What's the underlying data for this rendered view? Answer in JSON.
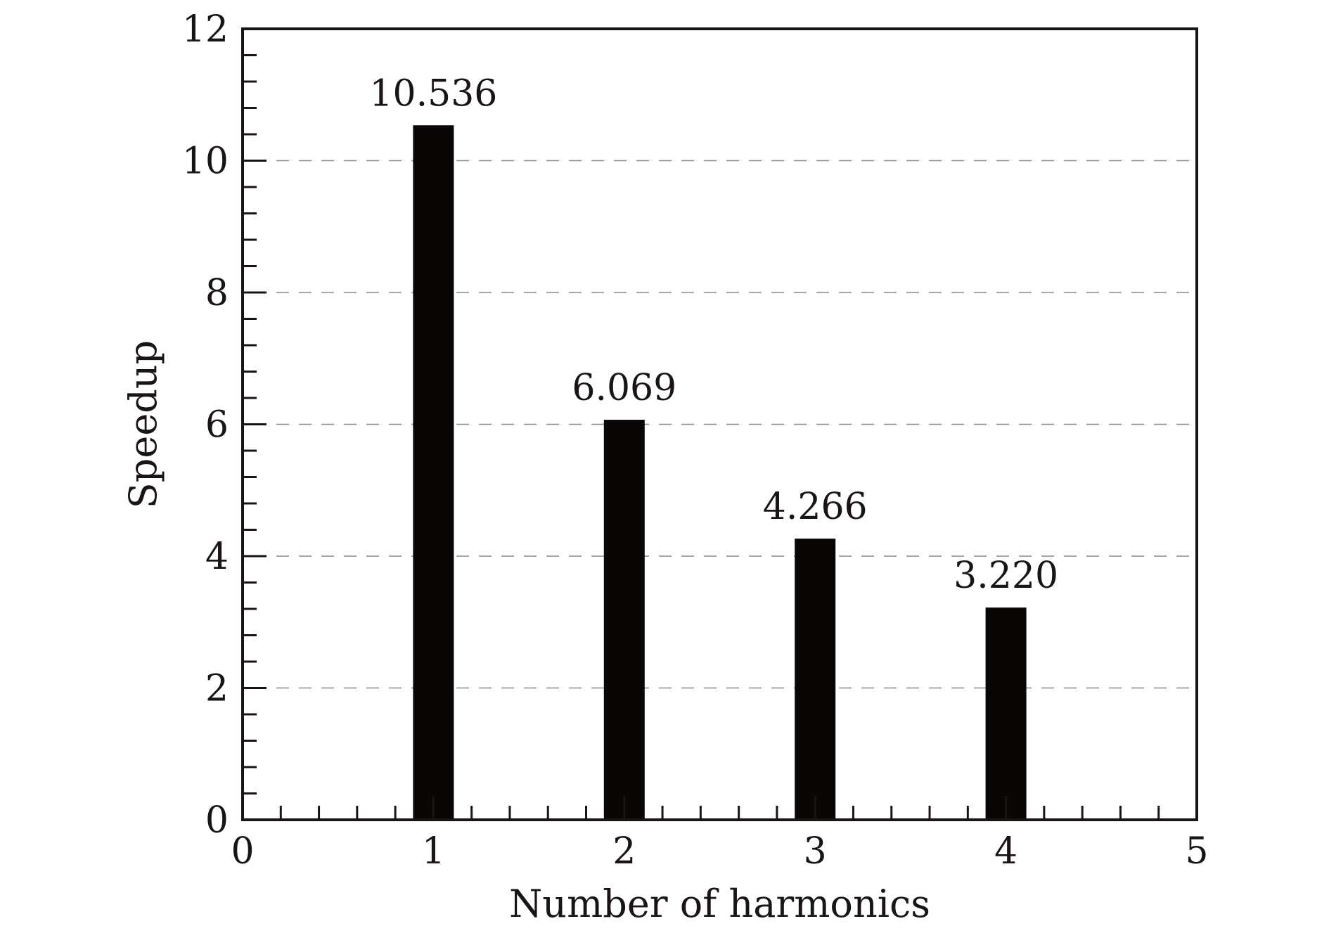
{
  "chart_data": {
    "type": "bar",
    "x": [
      1,
      2,
      3,
      4
    ],
    "values": [
      10.536,
      6.069,
      4.266,
      3.22
    ],
    "data_labels": [
      "10.536",
      "6.069",
      "4.266",
      "3.220"
    ],
    "xlabel": "Number of harmonics",
    "ylabel": "Speedup",
    "xlim": [
      0,
      5
    ],
    "ylim": [
      0,
      12
    ],
    "xticks": [
      0,
      1,
      2,
      3,
      4,
      5
    ],
    "xtick_labels": [
      "0",
      "1",
      "2",
      "3",
      "4",
      "5"
    ],
    "yticks": [
      0,
      2,
      4,
      6,
      8,
      10,
      12
    ],
    "ytick_labels": [
      "0",
      "2",
      "4",
      "6",
      "8",
      "10",
      "12"
    ],
    "grid": "horizontal dashed",
    "legend": "none",
    "colors": {
      "bar": "#0b0606",
      "axis": "#1a1414",
      "grid": "#8a8a8a"
    }
  }
}
